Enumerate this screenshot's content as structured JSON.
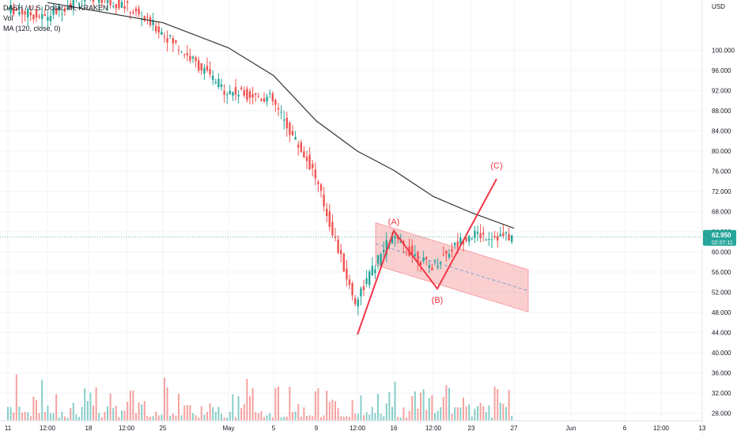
{
  "legend": {
    "symbol_line": "DASH / U.S. Dollar, 4h, KRAKEN",
    "vol_label": "Vol",
    "ma_label": "MA (120, close, 0)"
  },
  "colors": {
    "up": "#26a69a",
    "down": "#ef5350",
    "ma": "#333333",
    "pattern": "#f23645",
    "channel_fill": "#f7a9a9",
    "price_line": "#26a69a",
    "badge_bg": "#26a69a",
    "axis_text": "#131722",
    "grid": "#f0f3fa"
  },
  "chart_data": {
    "type": "candlestick",
    "title": "DASH / U.S. Dollar, 4h, KRAKEN",
    "currency_label": "USD",
    "ylim": [
      26.5,
      110
    ],
    "y_ticks": [
      "100.000",
      "96.000",
      "92.000",
      "88.000",
      "84.000",
      "80.000",
      "76.000",
      "72.000",
      "68.000",
      "64.000",
      "60.000",
      "56.000",
      "52.000",
      "48.000",
      "44.000",
      "40.000",
      "36.000",
      "32.000",
      "28.000"
    ],
    "x_ticks": [
      "11",
      "12:00",
      "18",
      "12:00",
      "25",
      "May",
      "5",
      "9",
      "12:00",
      "16",
      "12:00",
      "23",
      "27",
      "Jun",
      "6",
      "12:00",
      "13"
    ],
    "last_price": "62.950",
    "countdown": "02:07:11",
    "close_path": [
      [
        "11",
        108.5
      ],
      [
        "12:00",
        106.5
      ],
      [
        "18",
        111
      ],
      [
        "12:00",
        109
      ],
      [
        "25",
        104
      ],
      [
        "May",
        92
      ],
      [
        "5",
        90.5
      ],
      [
        "9",
        76
      ],
      [
        "12:00",
        50
      ],
      [
        "16",
        63
      ],
      [
        "12:00",
        57
      ],
      [
        "23",
        63.5
      ],
      [
        "27",
        62.95
      ]
    ],
    "moving_average_120": [
      [
        "12:00",
        109.5
      ],
      [
        "25",
        105.5
      ],
      [
        "May",
        100.5
      ],
      [
        "5",
        95
      ],
      [
        "9",
        86
      ],
      [
        "12:00",
        80
      ],
      [
        "16",
        76.2
      ],
      [
        "12:00",
        71
      ],
      [
        "23",
        67.8
      ],
      [
        "27",
        64.7
      ]
    ],
    "patterns": [
      {
        "label": "(A)",
        "price": 64.2
      },
      {
        "label": "(B)",
        "price": 52.7
      },
      {
        "label": "(C)",
        "price": 74.5
      },
      {
        "label": "",
        "price": 43.6
      }
    ],
    "channel": {
      "upper": [
        [
          47.5,
          65.8
        ],
        [
          66.8,
          56.5
        ]
      ],
      "lower": [
        [
          47.5,
          57.4
        ],
        [
          66.8,
          48.1
        ]
      ]
    }
  }
}
